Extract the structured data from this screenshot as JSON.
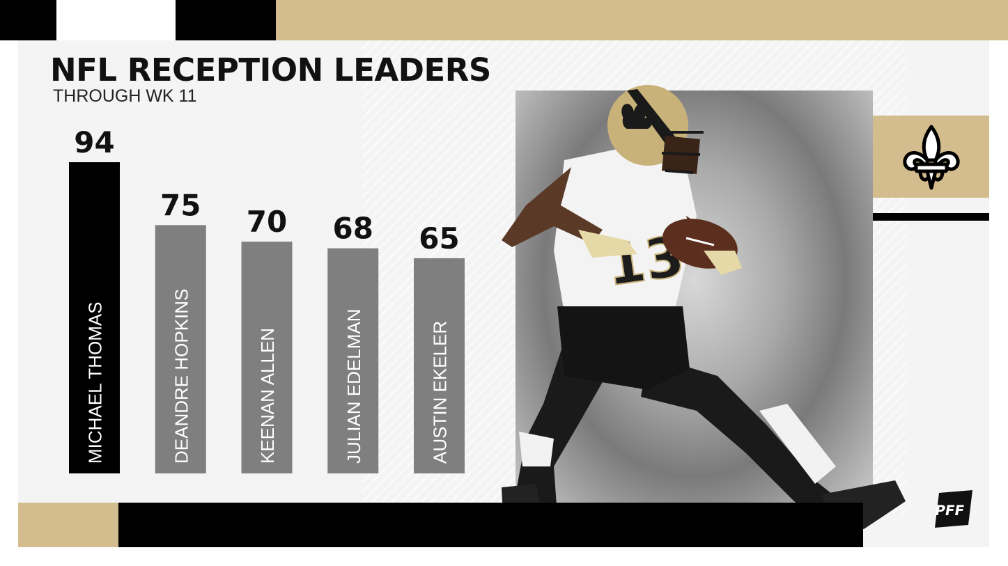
{
  "header": {
    "title": "NFL RECEPTION LEADERS",
    "subtitle": "THROUGH WK 11"
  },
  "colors": {
    "gold": "#d3bc8d",
    "black": "#000000",
    "leader_bar": "#000000",
    "other_bar": "#7f7f7f",
    "panel": "#f4f4f4"
  },
  "chart_data": {
    "type": "bar",
    "title": "NFL RECEPTION LEADERS",
    "subtitle": "THROUGH WK 11",
    "categories": [
      "MICHAEL THOMAS",
      "DEANDRE HOPKINS",
      "KEENAN ALLEN",
      "JULIAN EDELMAN",
      "AUSTIN EKELER"
    ],
    "values": [
      94,
      75,
      70,
      68,
      65
    ],
    "highlight_index": 0,
    "ylim": [
      0,
      94
    ],
    "grid": false,
    "orientation": "vertical",
    "label_orientation": "rotated-inside-bar"
  },
  "branding": {
    "team_logo_icon": "fleur-de-lis-icon",
    "badge_icon": "pff-logo-icon",
    "badge_text": "PFF"
  }
}
